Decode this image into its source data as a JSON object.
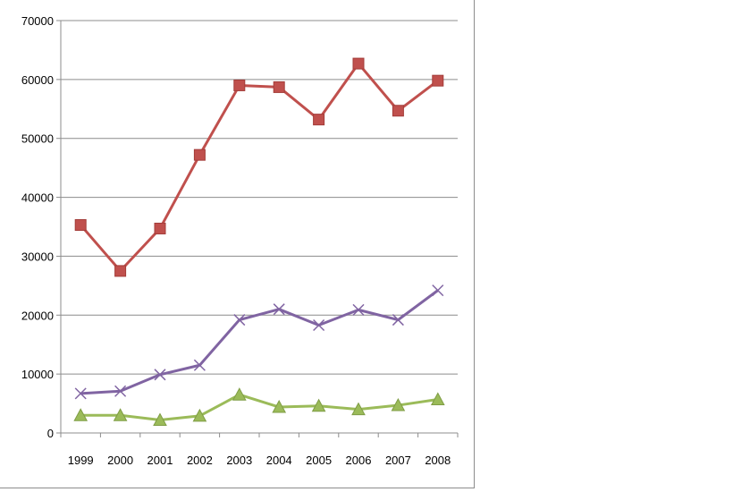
{
  "chart_data": {
    "type": "line",
    "categories": [
      "1999",
      "2000",
      "2001",
      "2002",
      "2003",
      "2004",
      "2005",
      "2006",
      "2007",
      "2008"
    ],
    "ylim": [
      0,
      70000
    ],
    "yticks": [
      0,
      10000,
      20000,
      30000,
      40000,
      50000,
      60000,
      70000
    ],
    "ytick_labels": [
      "0",
      "10000",
      "20000",
      "30000",
      "40000",
      "50000",
      "60000",
      "70000"
    ],
    "grid": true,
    "legend": "none",
    "series": [
      {
        "color": "#c0504d",
        "marker": "square",
        "values": [
          35300,
          27500,
          34700,
          47200,
          59000,
          58700,
          53200,
          62700,
          54700,
          59800
        ]
      },
      {
        "color": "#8064a2",
        "marker": "x",
        "values": [
          6700,
          7100,
          9900,
          11500,
          19200,
          21000,
          18300,
          20900,
          19200,
          24200
        ]
      },
      {
        "color": "#9bbb59",
        "marker": "triangle",
        "values": [
          3000,
          3000,
          2200,
          2900,
          6500,
          4400,
          4600,
          4000,
          4700,
          5700
        ]
      }
    ]
  }
}
